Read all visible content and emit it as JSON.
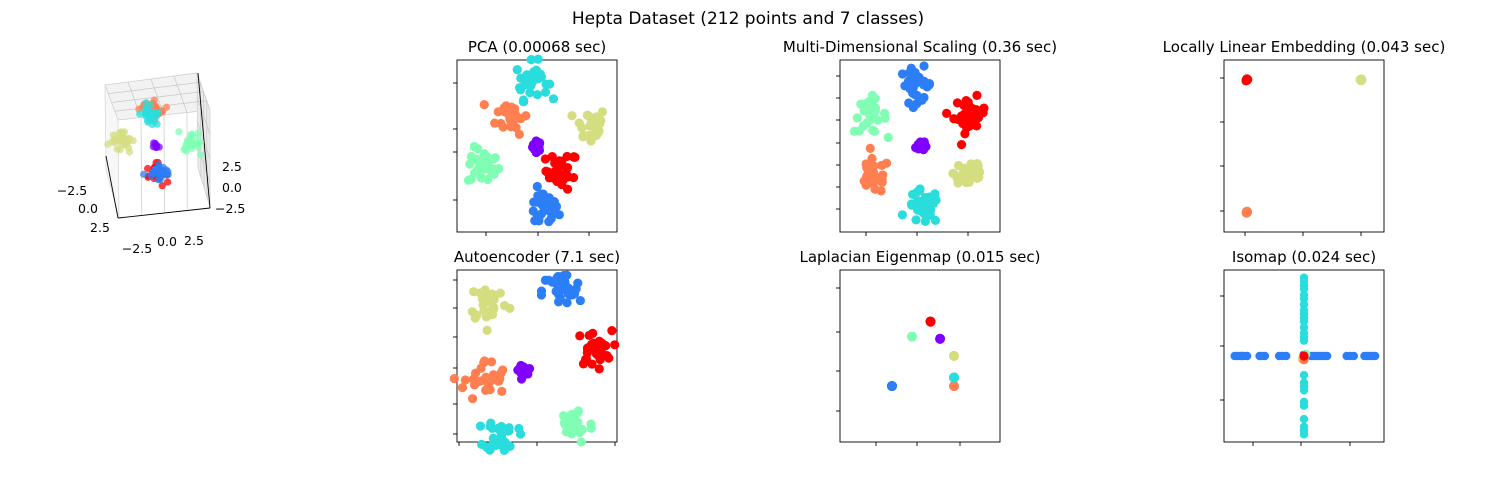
{
  "figure": {
    "title": "Hepta Dataset (212 points and 7 classes)"
  },
  "colors": {
    "c0": "#8000ff",
    "c1": "#ff0000",
    "c2": "#2c7ef7",
    "c3": "#80ffb4",
    "c4": "#d4dd80",
    "c5": "#ff7f50",
    "c6": "#2adddd"
  },
  "chart_data": [
    {
      "id": "original-3d",
      "type": "scatter",
      "title": "",
      "is_3d": true,
      "x_ticks": [
        "−2.5",
        "0.0",
        "2.5"
      ],
      "y_ticks": [
        "−2.5",
        "0.0",
        "2.5"
      ],
      "z_ticks": [
        "2.5",
        "0.0",
        "−2.5"
      ],
      "grid": true,
      "legend": "none",
      "series": [
        {
          "color": "c0",
          "center": [
            0.0,
            0.0,
            0.0
          ],
          "spread": 0.15
        },
        {
          "color": "c1",
          "center": [
            0.0,
            0.0,
            -3.0
          ],
          "spread": 0.45
        },
        {
          "color": "c2",
          "center": [
            0.0,
            1.2,
            -2.2
          ],
          "spread": 0.4
        },
        {
          "color": "c3",
          "center": [
            2.8,
            0.5,
            0.8
          ],
          "spread": 0.45
        },
        {
          "color": "c4",
          "center": [
            -3.0,
            0.3,
            0.6
          ],
          "spread": 0.45
        },
        {
          "color": "c5",
          "center": [
            0.0,
            -2.5,
            2.6
          ],
          "spread": 0.45
        },
        {
          "color": "c6",
          "center": [
            -0.2,
            -2.2,
            2.2
          ],
          "spread": 0.4
        }
      ]
    },
    {
      "id": "pca",
      "type": "scatter",
      "title": "PCA (0.00068 sec)",
      "grid": false,
      "legend": "none",
      "xlim": [
        -4.5,
        4.5
      ],
      "ylim": [
        -4.2,
        4.2
      ],
      "series": [
        {
          "color": "c0",
          "center": [
            0.0,
            0.0
          ],
          "spread": 0.12,
          "count": 30
        },
        {
          "color": "c1",
          "center": [
            1.4,
            -1.2
          ],
          "spread": 0.45,
          "count": 30
        },
        {
          "color": "c2",
          "center": [
            0.3,
            -3.1
          ],
          "spread": 0.45,
          "count": 30
        },
        {
          "color": "c3",
          "center": [
            -3.0,
            -1.0
          ],
          "spread": 0.45,
          "count": 30
        },
        {
          "color": "c4",
          "center": [
            3.0,
            1.0
          ],
          "spread": 0.45,
          "count": 30
        },
        {
          "color": "c5",
          "center": [
            -1.4,
            1.5
          ],
          "spread": 0.45,
          "count": 30
        },
        {
          "color": "c6",
          "center": [
            -0.3,
            3.2
          ],
          "spread": 0.45,
          "count": 32
        }
      ]
    },
    {
      "id": "mds",
      "type": "scatter",
      "title": "Multi-Dimensional Scaling (0.36 sec)",
      "grid": false,
      "legend": "none",
      "xlim": [
        -4.5,
        4.5
      ],
      "ylim": [
        -4.5,
        4.5
      ],
      "series": [
        {
          "color": "c0",
          "center": [
            0.0,
            0.0
          ],
          "spread": 0.12,
          "count": 30
        },
        {
          "color": "c1",
          "center": [
            2.8,
            1.6
          ],
          "spread": 0.45,
          "count": 30
        },
        {
          "color": "c2",
          "center": [
            -0.2,
            3.2
          ],
          "spread": 0.45,
          "count": 30
        },
        {
          "color": "c3",
          "center": [
            -2.8,
            1.6
          ],
          "spread": 0.45,
          "count": 30
        },
        {
          "color": "c4",
          "center": [
            2.8,
            -1.4
          ],
          "spread": 0.45,
          "count": 30
        },
        {
          "color": "c5",
          "center": [
            -2.6,
            -1.6
          ],
          "spread": 0.45,
          "count": 30
        },
        {
          "color": "c6",
          "center": [
            0.2,
            -3.2
          ],
          "spread": 0.45,
          "count": 32
        }
      ]
    },
    {
      "id": "lle",
      "type": "scatter",
      "title": "Locally Linear Embedding (0.043 sec)",
      "grid": false,
      "legend": "none",
      "xlim": [
        -0.2,
        1.2
      ],
      "ylim": [
        -0.15,
        1.15
      ],
      "series": [
        {
          "color": "c1",
          "center": [
            0.0,
            1.0
          ],
          "spread": 0.003,
          "count": 30
        },
        {
          "color": "c4",
          "center": [
            1.0,
            1.0
          ],
          "spread": 0.003,
          "count": 30
        },
        {
          "color": "c5",
          "center": [
            0.0,
            0.0
          ],
          "spread": 0.003,
          "count": 30
        }
      ]
    },
    {
      "id": "autoencoder",
      "type": "scatter",
      "title": "Autoencoder (7.1 sec)",
      "grid": false,
      "legend": "none",
      "xlim": [
        -4.5,
        4.5
      ],
      "ylim": [
        -4.8,
        4.8
      ],
      "series": [
        {
          "color": "c0",
          "center": [
            -0.8,
            -0.8
          ],
          "spread": 0.12,
          "count": 30
        },
        {
          "color": "c1",
          "center": [
            3.2,
            0.4
          ],
          "spread": 0.5,
          "count": 30
        },
        {
          "color": "c2",
          "center": [
            1.4,
            3.6
          ],
          "spread": 0.55,
          "count": 30
        },
        {
          "color": "c3",
          "center": [
            2.1,
            -3.8
          ],
          "spread": 0.55,
          "count": 30
        },
        {
          "color": "c4",
          "center": [
            -2.7,
            3.0
          ],
          "spread": 0.55,
          "count": 30
        },
        {
          "color": "c5",
          "center": [
            -2.9,
            -1.4
          ],
          "spread": 0.6,
          "count": 30
        },
        {
          "color": "c6",
          "center": [
            -2.0,
            -4.4
          ],
          "spread": 0.45,
          "count": 32
        }
      ]
    },
    {
      "id": "laplacian",
      "type": "scatter",
      "title": "Laplacian Eigenmap (0.015 sec)",
      "grid": false,
      "legend": "none",
      "xlim": [
        -0.2,
        0.2
      ],
      "ylim": [
        -0.24,
        0.16
      ],
      "series": [
        {
          "color": "c0",
          "center": [
            0.05,
            0.0
          ],
          "spread": 0.0005,
          "count": 30
        },
        {
          "color": "c1",
          "center": [
            0.026,
            0.04
          ],
          "spread": 0.0005,
          "count": 30
        },
        {
          "color": "c2",
          "center": [
            -0.07,
            -0.11
          ],
          "spread": 0.0005,
          "count": 30
        },
        {
          "color": "c3",
          "center": [
            -0.02,
            0.005
          ],
          "spread": 0.0005,
          "count": 30
        },
        {
          "color": "c4",
          "center": [
            0.085,
            -0.04
          ],
          "spread": 0.0005,
          "count": 30
        },
        {
          "color": "c5",
          "center": [
            0.085,
            -0.11
          ],
          "spread": 0.0005,
          "count": 30
        },
        {
          "color": "c6",
          "center": [
            0.085,
            -0.09
          ],
          "spread": 0.0005,
          "count": 32
        }
      ]
    },
    {
      "id": "isomap",
      "type": "scatter",
      "title": "Isomap (0.024 sec)",
      "grid": false,
      "legend": "none",
      "xlim": [
        -4.5,
        4.5
      ],
      "ylim": [
        -4.5,
        4.5
      ],
      "series": [
        {
          "color": "c2",
          "axis": "x",
          "values": [
            -3.9,
            -3.75,
            -3.6,
            -3.5,
            -3.4,
            -3.2,
            -2.5,
            -2.35,
            -2.2,
            -1.4,
            -1.2,
            -1.0,
            0.4,
            0.55,
            0.7,
            0.85,
            1.0,
            1.15,
            1.3,
            2.4,
            2.6,
            2.8,
            3.4,
            3.55,
            3.7,
            3.85,
            4.0
          ]
        },
        {
          "color": "c6",
          "axis": "y",
          "values": [
            -4.1,
            -3.9,
            -3.7,
            -3.3,
            -2.6,
            -2.4,
            -1.8,
            -1.6,
            -1.4,
            -1.0,
            0.8,
            1.0,
            1.2,
            1.5,
            1.8,
            2.0,
            2.2,
            2.4,
            2.7,
            3.0,
            3.2,
            3.5,
            3.7,
            3.9,
            4.1
          ]
        },
        {
          "color": "c0",
          "axis": "point",
          "values": [
            0.0,
            0.05
          ]
        },
        {
          "color": "c3",
          "axis": "point",
          "values": [
            0.1,
            0.1
          ]
        },
        {
          "color": "c4",
          "axis": "point",
          "values": [
            -0.1,
            -0.15
          ]
        },
        {
          "color": "c5",
          "axis": "point",
          "values": [
            0.0,
            -0.2
          ]
        },
        {
          "color": "c1",
          "axis": "point",
          "values": [
            0.0,
            0.0
          ]
        }
      ]
    }
  ]
}
